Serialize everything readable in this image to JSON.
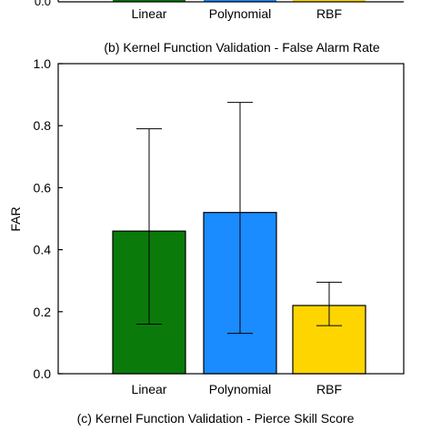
{
  "top_fragment": {
    "tick_label": "0.0",
    "categories": [
      "Linear",
      "Polynomial",
      "RBF"
    ],
    "colors": [
      "#0a7a0a",
      "#1a8cff",
      "#ffd500"
    ]
  },
  "caption_b": "(b) Kernel Function Validation - False Alarm Rate",
  "caption_c": "(c) Kernel Function Validation - Pierce Skill Score",
  "chart_data": {
    "type": "bar",
    "categories": [
      "Linear",
      "Polynomial",
      "RBF"
    ],
    "values": [
      0.46,
      0.52,
      0.22
    ],
    "error_low": [
      0.16,
      0.13,
      0.155
    ],
    "error_high": [
      0.79,
      0.875,
      0.295
    ],
    "colors": [
      "#0a7a0a",
      "#1a8cff",
      "#ffd500"
    ],
    "ylabel": "FAR",
    "ylim": [
      0,
      1
    ],
    "yticks": [
      "0.0",
      "0.2",
      "0.4",
      "0.6",
      "0.8",
      "1.0"
    ],
    "grid": false
  }
}
